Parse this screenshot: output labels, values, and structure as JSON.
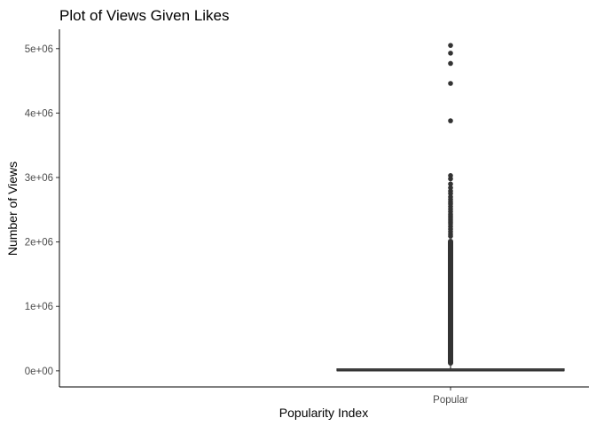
{
  "chart_data": {
    "type": "boxplot",
    "title": "Plot of Views Given Likes",
    "xlabel": "Popularity Index",
    "ylabel": "Number of Views",
    "categories": [
      "Popular"
    ],
    "ylim": [
      -250000,
      5300000
    ],
    "y_ticks": [
      {
        "value": 0,
        "label": "0e+00"
      },
      {
        "value": 1000000,
        "label": "1e+06"
      },
      {
        "value": 2000000,
        "label": "2e+06"
      },
      {
        "value": 3000000,
        "label": "3e+06"
      },
      {
        "value": 4000000,
        "label": "4e+06"
      },
      {
        "value": 5000000,
        "label": "5e+06"
      }
    ],
    "x_tick_labels": [
      "Popular"
    ],
    "grid": false,
    "legend": "none",
    "colors": {
      "box": "#333333",
      "points": "#333333",
      "axis": "#000000"
    },
    "box": {
      "category": "Popular",
      "min": 0,
      "q1": 2000,
      "median": 8000,
      "q3": 30000,
      "whisker_high": 80000
    },
    "outlier_band": {
      "from": 80000,
      "to": 2050000
    },
    "outliers": [
      5050000,
      4930000,
      4770000,
      4460000,
      3880000,
      3030000,
      2980000,
      2900000,
      2840000,
      2790000,
      2750000,
      2700000,
      2660000,
      2620000,
      2590000,
      2550000,
      2510000,
      2470000,
      2430000,
      2400000,
      2370000,
      2340000,
      2310000,
      2280000,
      2240000,
      2200000,
      2160000,
      2120000,
      2090000
    ]
  }
}
